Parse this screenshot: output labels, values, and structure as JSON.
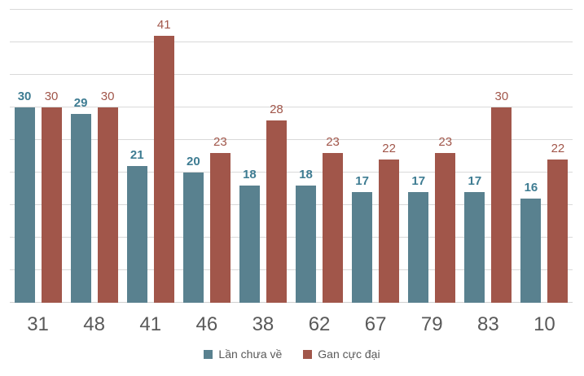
{
  "chart_data": {
    "type": "bar",
    "categories": [
      "31",
      "48",
      "41",
      "46",
      "38",
      "62",
      "67",
      "79",
      "83",
      "10"
    ],
    "series": [
      {
        "name": "Lần chưa về",
        "values": [
          30,
          29,
          21,
          20,
          18,
          18,
          17,
          17,
          17,
          16
        ],
        "color": "#59818F",
        "label_color": "#3E7C92",
        "label_bold": true
      },
      {
        "name": "Gan cực đại",
        "values": [
          30,
          30,
          41,
          23,
          28,
          23,
          22,
          23,
          30,
          22
        ],
        "color": "#A1564A",
        "label_color": "#A1564A",
        "label_bold": false
      }
    ],
    "title": "",
    "xlabel": "",
    "ylabel": "",
    "ylim": [
      0,
      45
    ],
    "grid_step": 5,
    "grid": "horizontal-only",
    "data_labels": "above-bars",
    "legend_position": "bottom-center",
    "axis_text_color": "#595959",
    "gridline_color": "#d9d9d9"
  }
}
